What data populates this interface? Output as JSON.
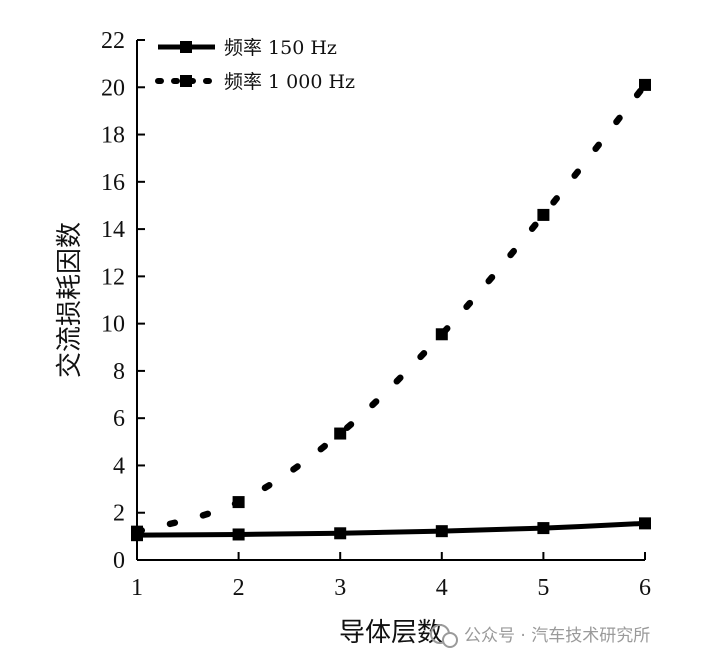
{
  "chart_data": {
    "type": "line",
    "title": "",
    "xlabel": "导体层数",
    "ylabel": "交流损耗因数",
    "x": [
      1,
      2,
      3,
      4,
      5,
      6
    ],
    "xlim": [
      1,
      6
    ],
    "ylim": [
      0,
      22
    ],
    "xticks": [
      "1",
      "2",
      "3",
      "4",
      "5",
      "6"
    ],
    "yticks": [
      "0",
      "2",
      "4",
      "6",
      "8",
      "10",
      "12",
      "14",
      "16",
      "18",
      "20",
      "22"
    ],
    "grid": false,
    "legend_position": "top-left",
    "series": [
      {
        "name": "频率 150 Hz",
        "values": [
          1.05,
          1.08,
          1.13,
          1.22,
          1.35,
          1.55
        ],
        "line_style": "solid",
        "marker": "square",
        "color": "#000000"
      },
      {
        "name": "频率 1 000 Hz",
        "values": [
          1.2,
          2.45,
          5.35,
          9.55,
          14.6,
          20.1
        ],
        "line_style": "dotted",
        "marker": "square",
        "color": "#000000"
      }
    ]
  },
  "watermark": {
    "text": "公众号 · 汽车技术研究所",
    "icon": "wechat-official-account-icon",
    "color": "#9a9a9a"
  }
}
